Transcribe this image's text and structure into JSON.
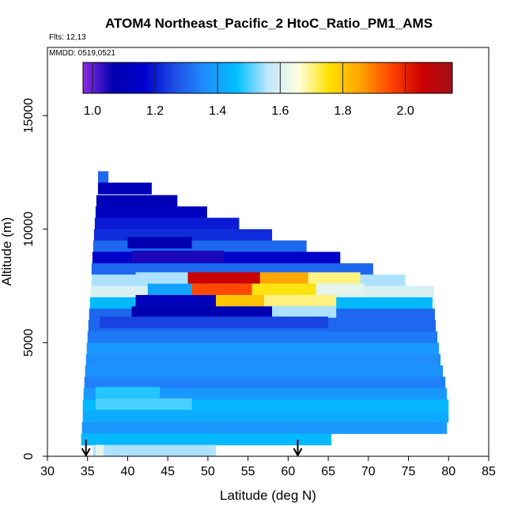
{
  "chart_data": {
    "type": "heatmap",
    "title": "ATOM4 Northeast_Pacific_2 HtoC_Ratio_PM1_AMS",
    "flights_label": "Flts: 12,13",
    "dates_label": "MMDD: 0519,0521",
    "xlabel": "Latitude (deg N)",
    "ylabel": "Altitude (m)",
    "xlim": [
      30,
      85
    ],
    "ylim": [
      0,
      18000
    ],
    "xticks": [
      "30",
      "35",
      "40",
      "45",
      "50",
      "55",
      "60",
      "65",
      "70",
      "75",
      "80",
      "85"
    ],
    "yticks": [
      "0",
      "5000",
      "10000",
      "15000"
    ],
    "colorbar": {
      "min": 0.97,
      "max": 2.15,
      "tick_values": [
        1.0,
        1.2,
        1.4,
        1.6,
        1.8,
        2.0
      ],
      "tick_labels": [
        "1.0",
        "1.2",
        "1.4",
        "1.6",
        "1.8",
        "2.0"
      ],
      "colors": [
        "#8a2be2",
        "#0000b0",
        "#0000cd",
        "#1e50e6",
        "#1e90ff",
        "#00bfff",
        "#bfe6ff",
        "#ffffe0",
        "#ffe000",
        "#ffa500",
        "#ff4500",
        "#cd0000",
        "#a0101a"
      ]
    },
    "arrows": [
      34.8,
      61.2
    ],
    "bands": [
      {
        "alt": 12300,
        "lat": [
          36.3,
          37.6
        ],
        "v": 1.3
      },
      {
        "alt": 11800,
        "lat": [
          36.3,
          43.0
        ],
        "v": 1.1
      },
      {
        "alt": 11250,
        "lat": [
          36.1,
          46.2
        ],
        "v": 1.09
      },
      {
        "alt": 10750,
        "lat": [
          36.0,
          49.9
        ],
        "v": 1.12
      },
      {
        "alt": 10250,
        "lat": [
          35.9,
          53.9
        ],
        "v": 1.2
      },
      {
        "alt": 9750,
        "lat": [
          35.8,
          58.0
        ],
        "v": 1.22
      },
      {
        "alt": 9250,
        "lat": [
          35.7,
          62.3
        ],
        "v": 1.3
      },
      {
        "alt": 8750,
        "lat": [
          35.6,
          66.5
        ],
        "v": 1.15
      },
      {
        "alt": 8250,
        "lat": [
          35.5,
          70.6
        ],
        "v": 1.3
      },
      {
        "alt": 7750,
        "lat": [
          35.5,
          74.6
        ],
        "v": 1.55
      },
      {
        "alt": 7250,
        "lat": [
          35.4,
          78.2
        ],
        "v": 1.6
      },
      {
        "alt": 6750,
        "lat": [
          35.3,
          78.0
        ],
        "v": 1.45
      },
      {
        "alt": 6250,
        "lat": [
          35.2,
          78.3
        ],
        "v": 1.3
      },
      {
        "alt": 5750,
        "lat": [
          35.1,
          78.4
        ],
        "v": 1.3
      },
      {
        "alt": 5250,
        "lat": [
          35.0,
          78.6
        ],
        "v": 1.33
      },
      {
        "alt": 4750,
        "lat": [
          34.9,
          78.8
        ],
        "v": 1.38
      },
      {
        "alt": 4250,
        "lat": [
          34.8,
          79.0
        ],
        "v": 1.36
      },
      {
        "alt": 3750,
        "lat": [
          34.7,
          79.3
        ],
        "v": 1.37
      },
      {
        "alt": 3250,
        "lat": [
          34.6,
          79.6
        ],
        "v": 1.34
      },
      {
        "alt": 2750,
        "lat": [
          34.5,
          79.8
        ],
        "v": 1.38
      },
      {
        "alt": 2250,
        "lat": [
          34.4,
          80.0
        ],
        "v": 1.45
      },
      {
        "alt": 1750,
        "lat": [
          34.4,
          80.0
        ],
        "v": 1.42
      },
      {
        "alt": 1250,
        "lat": [
          34.3,
          79.8
        ],
        "v": 1.38
      },
      {
        "alt": 750,
        "lat": [
          34.2,
          65.4
        ],
        "v": 1.45
      },
      {
        "alt": 250,
        "lat": [
          35.7,
          51.0
        ],
        "v": 1.55
      }
    ],
    "features": [
      {
        "alt": 7850,
        "lat": [
          41.0,
          47.5
        ],
        "v": 1.55
      },
      {
        "alt": 7850,
        "lat": [
          47.5,
          56.5
        ],
        "v": 2.06
      },
      {
        "alt": 7850,
        "lat": [
          56.5,
          62.5
        ],
        "v": 1.85
      },
      {
        "alt": 7850,
        "lat": [
          62.5,
          69.0
        ],
        "v": 1.7
      },
      {
        "alt": 7350,
        "lat": [
          42.5,
          48.0
        ],
        "v": 1.4
      },
      {
        "alt": 7350,
        "lat": [
          48.0,
          55.5
        ],
        "v": 1.95
      },
      {
        "alt": 7350,
        "lat": [
          55.5,
          63.5
        ],
        "v": 1.75
      },
      {
        "alt": 7350,
        "lat": [
          63.5,
          69.5
        ],
        "v": 1.62
      },
      {
        "alt": 6850,
        "lat": [
          41.0,
          51.0
        ],
        "v": 1.1
      },
      {
        "alt": 6850,
        "lat": [
          51.0,
          57.0
        ],
        "v": 1.8
      },
      {
        "alt": 6850,
        "lat": [
          57.0,
          66.0
        ],
        "v": 1.7
      },
      {
        "alt": 6350,
        "lat": [
          40.5,
          58.0
        ],
        "v": 1.08
      },
      {
        "alt": 6350,
        "lat": [
          58.0,
          66.0
        ],
        "v": 1.55
      },
      {
        "alt": 5900,
        "lat": [
          36.5,
          65.0
        ],
        "v": 1.25
      },
      {
        "alt": 9400,
        "lat": [
          40.0,
          48.0
        ],
        "v": 1.08
      },
      {
        "alt": 8800,
        "lat": [
          40.5,
          52.0
        ],
        "v": 1.05
      },
      {
        "alt": 2300,
        "lat": [
          36.0,
          48.0
        ],
        "v": 1.5
      },
      {
        "alt": 2800,
        "lat": [
          36.0,
          44.0
        ],
        "v": 1.48
      },
      {
        "alt": 250,
        "lat": [
          36.0,
          37.0
        ],
        "v": 1.62
      }
    ]
  }
}
